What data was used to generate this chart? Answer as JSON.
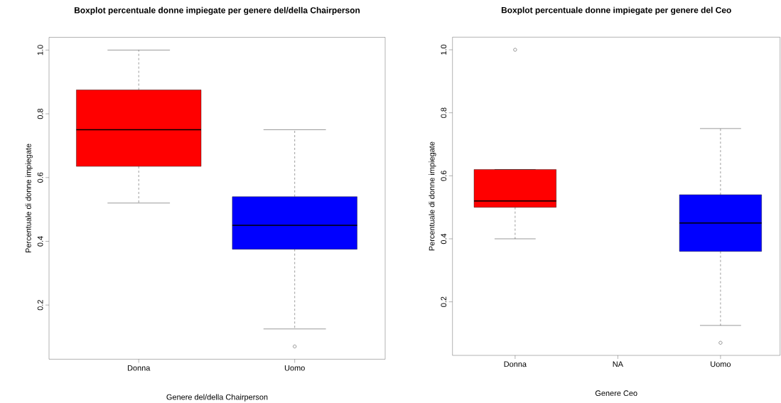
{
  "chart_data": [
    {
      "type": "box",
      "title": "Boxplot percentuale donne impiegate per genere del/della Chairperson",
      "xlabel": "Genere del/della Chairperson",
      "ylabel": "Percentuale di donne impiegate",
      "categories": [
        "Donna",
        "Uomo"
      ],
      "colors": [
        "#ff0000",
        "#0000ff"
      ],
      "boxes": [
        {
          "low": 0.52,
          "q1": 0.635,
          "median": 0.75,
          "q3": 0.875,
          "high": 1.0
        },
        {
          "low": 0.125,
          "q1": 0.375,
          "median": 0.45,
          "q3": 0.54,
          "high": 0.75,
          "outliers": [
            0.07
          ]
        }
      ],
      "ylim": [
        0.03,
        1.04
      ],
      "yticks": [
        0.2,
        0.4,
        0.6,
        0.8,
        {
          "value": 1.0,
          "label": "1.0"
        }
      ]
    },
    {
      "type": "box",
      "title": "Boxplot percentuale donne impiegate per genere del Ceo",
      "xlabel": "Genere Ceo",
      "ylabel": "Percentuale di donne impiegate",
      "categories": [
        "Donna",
        "NA",
        "Uomo"
      ],
      "colors": [
        "#ff0000",
        null,
        "#0000ff"
      ],
      "boxes": [
        {
          "low": 0.4,
          "q1": 0.5,
          "median": 0.52,
          "q3": 0.62,
          "high": 0.62,
          "outliers": [
            1.0
          ]
        },
        null,
        {
          "low": 0.125,
          "q1": 0.36,
          "median": 0.45,
          "q3": 0.54,
          "high": 0.75,
          "outliers": [
            0.07
          ]
        }
      ],
      "ylim": [
        0.03,
        1.04
      ],
      "yticks": [
        0.2,
        0.4,
        0.6,
        0.8,
        {
          "value": 1.0,
          "label": "1.0"
        }
      ]
    }
  ]
}
